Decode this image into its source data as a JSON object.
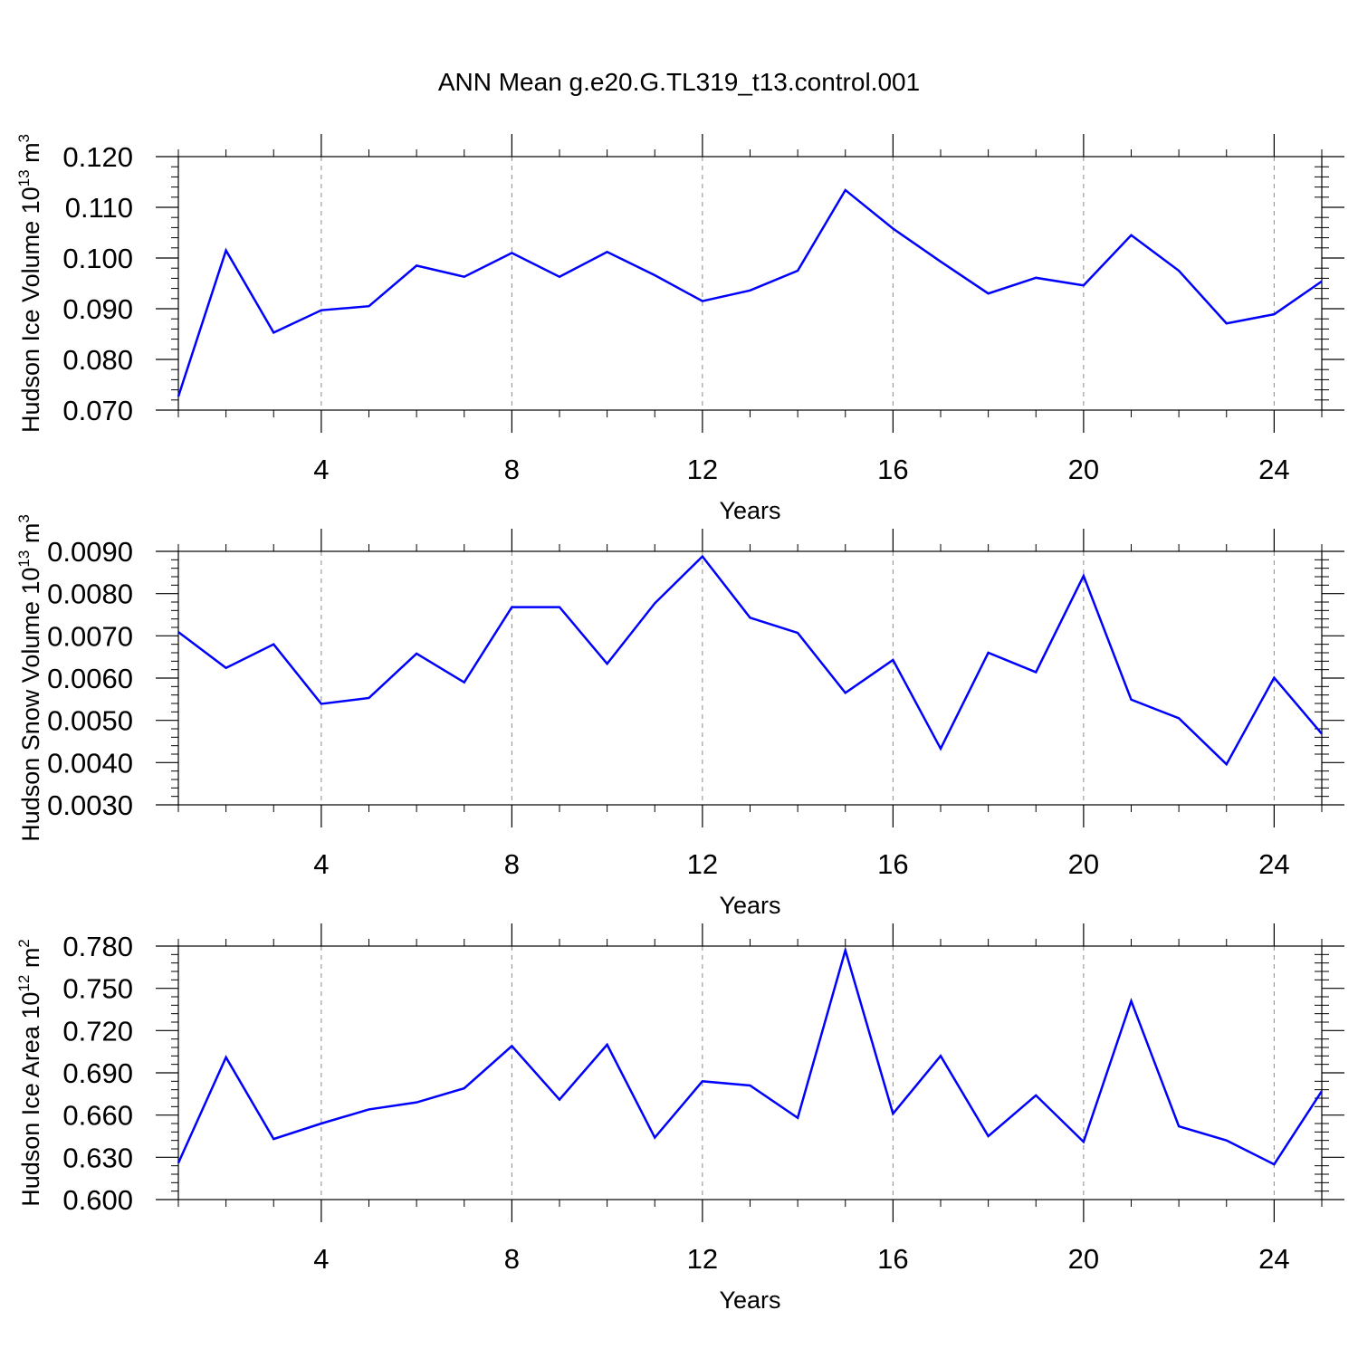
{
  "figure": {
    "title": "ANN Mean g.e20.G.TL319_t13.control.001"
  },
  "chart_data": [
    {
      "type": "line",
      "ylabel": {
        "main": "Hudson Ice Volume 10",
        "exp": "13",
        "tail": " m",
        "unit_exp": "3"
      },
      "xlabel": "Years",
      "xlim": [
        1,
        25
      ],
      "ylim": [
        0.07,
        0.12
      ],
      "xticks": [
        4,
        8,
        12,
        16,
        20,
        24
      ],
      "xtick_labels": [
        "4",
        "8",
        "12",
        "16",
        "20",
        "24"
      ],
      "yticks": [
        0.07,
        0.08,
        0.09,
        0.1,
        0.11,
        0.12
      ],
      "ytick_labels": [
        "0.070",
        "0.080",
        "0.090",
        "0.100",
        "0.110",
        "0.120"
      ],
      "grid": "vertical dashed at x ticks",
      "line_color": "#0000ff",
      "x": [
        1,
        2,
        3,
        4,
        5,
        6,
        7,
        8,
        9,
        10,
        11,
        12,
        13,
        14,
        15,
        16,
        17,
        18,
        19,
        20,
        21,
        22,
        23,
        24,
        25
      ],
      "y": [
        0.0727,
        0.1015,
        0.0853,
        0.0897,
        0.0905,
        0.0985,
        0.0963,
        0.101,
        0.0963,
        0.1012,
        0.0966,
        0.0915,
        0.0936,
        0.0975,
        0.1134,
        0.1058,
        0.0993,
        0.093,
        0.0961,
        0.0946,
        0.1045,
        0.0975,
        0.0871,
        0.0889,
        0.0954
      ]
    },
    {
      "type": "line",
      "ylabel": {
        "main": "Hudson Snow Volume 10",
        "exp": "13",
        "tail": " m",
        "unit_exp": "3"
      },
      "xlabel": "Years",
      "xlim": [
        1,
        25
      ],
      "ylim": [
        0.003,
        0.009
      ],
      "xticks": [
        4,
        8,
        12,
        16,
        20,
        24
      ],
      "xtick_labels": [
        "4",
        "8",
        "12",
        "16",
        "20",
        "24"
      ],
      "yticks": [
        0.003,
        0.004,
        0.005,
        0.006,
        0.007,
        0.008,
        0.009
      ],
      "ytick_labels": [
        "0.0030",
        "0.0040",
        "0.0050",
        "0.0060",
        "0.0070",
        "0.0080",
        "0.0090"
      ],
      "grid": "vertical dashed at x ticks",
      "line_color": "#0000ff",
      "x": [
        1,
        2,
        3,
        4,
        5,
        6,
        7,
        8,
        9,
        10,
        11,
        12,
        13,
        14,
        15,
        16,
        17,
        18,
        19,
        20,
        21,
        22,
        23,
        24,
        25
      ],
      "y": [
        0.00709,
        0.00624,
        0.0068,
        0.00539,
        0.00553,
        0.00658,
        0.0059,
        0.00768,
        0.00768,
        0.00634,
        0.00777,
        0.00888,
        0.00743,
        0.00707,
        0.00565,
        0.00643,
        0.00433,
        0.0066,
        0.00614,
        0.00842,
        0.00549,
        0.00505,
        0.00396,
        0.00601,
        0.00468
      ]
    },
    {
      "type": "line",
      "ylabel": {
        "main": "Hudson Ice Area 10",
        "exp": "12",
        "tail": " m",
        "unit_exp": "2"
      },
      "xlabel": "Years",
      "xlim": [
        1,
        25
      ],
      "ylim": [
        0.6,
        0.78
      ],
      "xticks": [
        4,
        8,
        12,
        16,
        20,
        24
      ],
      "xtick_labels": [
        "4",
        "8",
        "12",
        "16",
        "20",
        "24"
      ],
      "yticks": [
        0.6,
        0.63,
        0.66,
        0.69,
        0.72,
        0.75,
        0.78
      ],
      "ytick_labels": [
        "0.600",
        "0.630",
        "0.660",
        "0.690",
        "0.720",
        "0.750",
        "0.780"
      ],
      "grid": "vertical dashed at x ticks",
      "line_color": "#0000ff",
      "x": [
        1,
        2,
        3,
        4,
        5,
        6,
        7,
        8,
        9,
        10,
        11,
        12,
        13,
        14,
        15,
        16,
        17,
        18,
        19,
        20,
        21,
        22,
        23,
        24,
        25
      ],
      "y": [
        0.626,
        0.701,
        0.643,
        0.654,
        0.664,
        0.669,
        0.679,
        0.709,
        0.671,
        0.71,
        0.644,
        0.684,
        0.681,
        0.658,
        0.777,
        0.661,
        0.702,
        0.645,
        0.674,
        0.641,
        0.741,
        0.652,
        0.642,
        0.625,
        0.677
      ]
    }
  ]
}
